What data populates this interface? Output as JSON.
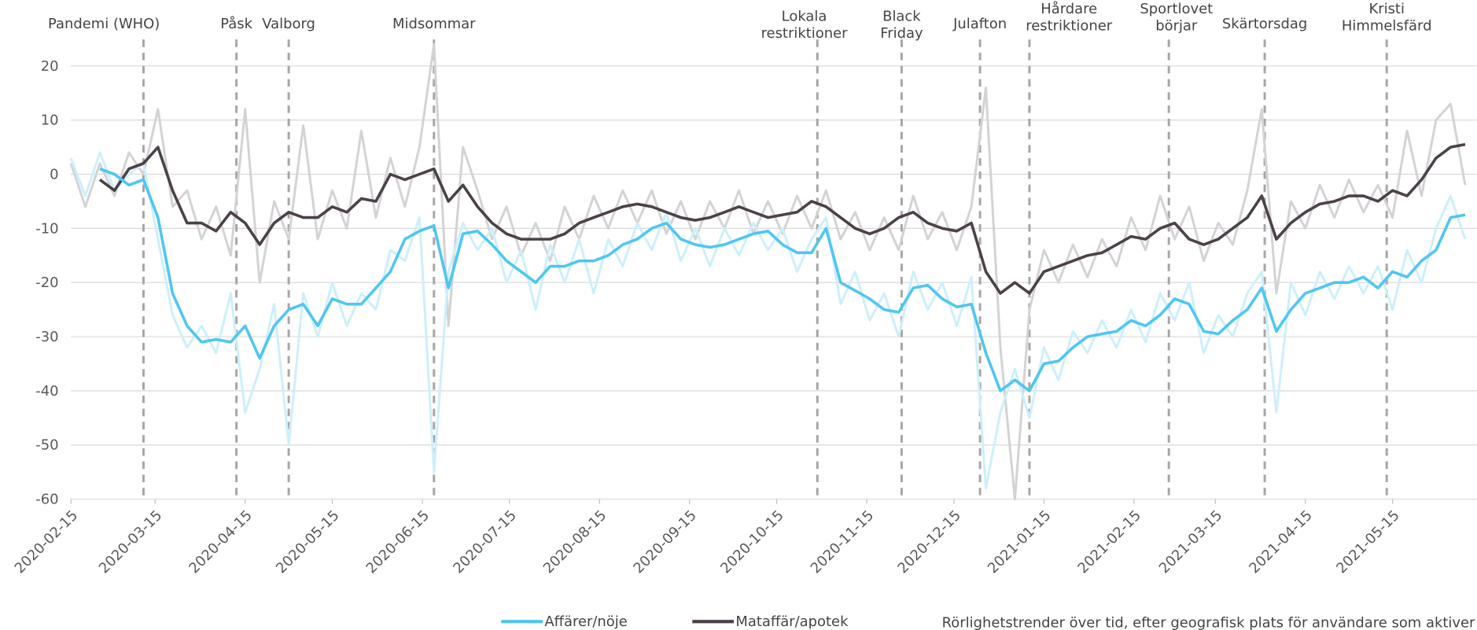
{
  "chart_data": {
    "type": "line",
    "x": [
      "2020-02-15",
      "2020-02-20",
      "2020-02-25",
      "2020-03-01",
      "2020-03-06",
      "2020-03-11",
      "2020-03-16",
      "2020-03-21",
      "2020-03-26",
      "2020-03-31",
      "2020-04-05",
      "2020-04-10",
      "2020-04-15",
      "2020-04-20",
      "2020-04-25",
      "2020-04-30",
      "2020-05-05",
      "2020-05-10",
      "2020-05-15",
      "2020-05-20",
      "2020-05-25",
      "2020-05-30",
      "2020-06-04",
      "2020-06-09",
      "2020-06-14",
      "2020-06-19",
      "2020-06-24",
      "2020-06-29",
      "2020-07-04",
      "2020-07-09",
      "2020-07-14",
      "2020-07-19",
      "2020-07-24",
      "2020-07-29",
      "2020-08-03",
      "2020-08-08",
      "2020-08-13",
      "2020-08-18",
      "2020-08-23",
      "2020-08-28",
      "2020-09-02",
      "2020-09-07",
      "2020-09-12",
      "2020-09-17",
      "2020-09-22",
      "2020-09-27",
      "2020-10-02",
      "2020-10-07",
      "2020-10-12",
      "2020-10-17",
      "2020-10-22",
      "2020-10-27",
      "2020-11-01",
      "2020-11-06",
      "2020-11-11",
      "2020-11-16",
      "2020-11-21",
      "2020-11-26",
      "2020-12-01",
      "2020-12-06",
      "2020-12-11",
      "2020-12-16",
      "2020-12-21",
      "2020-12-26",
      "2020-12-31",
      "2021-01-05",
      "2021-01-10",
      "2021-01-15",
      "2021-01-20",
      "2021-01-25",
      "2021-01-30",
      "2021-02-04",
      "2021-02-09",
      "2021-02-14",
      "2021-02-19",
      "2021-02-24",
      "2021-03-01",
      "2021-03-06",
      "2021-03-11",
      "2021-03-16",
      "2021-03-21",
      "2021-03-26",
      "2021-03-31",
      "2021-04-05",
      "2021-04-10",
      "2021-04-15",
      "2021-04-20",
      "2021-04-25",
      "2021-04-30",
      "2021-05-05",
      "2021-05-10",
      "2021-05-15",
      "2021-05-20",
      "2021-05-25",
      "2021-05-30",
      "2021-06-04",
      "2021-06-09"
    ],
    "raw_series": [
      {
        "color": "#d3d3d5",
        "values": [
          2,
          -6,
          2,
          -4,
          4,
          0,
          12,
          -6,
          -3,
          -12,
          -6,
          -15,
          12,
          -20,
          -5,
          -12,
          9,
          -12,
          -3,
          -10,
          8,
          -8,
          3,
          -6,
          5,
          24,
          -28,
          5,
          -3,
          -12,
          -6,
          -15,
          -9,
          -16,
          -6,
          -12,
          -4,
          -10,
          -3,
          -9,
          -3,
          -11,
          -5,
          -12,
          -5,
          -10,
          -3,
          -11,
          -5,
          -11,
          -4,
          -10,
          -3,
          -12,
          -7,
          -14,
          -8,
          -14,
          -4,
          -12,
          -7,
          -14,
          -6,
          16,
          -32,
          -60,
          -25,
          -14,
          -20,
          -13,
          -19,
          -12,
          -17,
          -8,
          -14,
          -4,
          -12,
          -6,
          -16,
          -9,
          -13,
          -3,
          12,
          -22,
          -5,
          -10,
          -2,
          -8,
          -1,
          -7,
          -2,
          -8,
          8,
          -4,
          10,
          13,
          -2
        ]
      },
      {
        "color": "#cdeffb",
        "values": [
          3,
          -4,
          4,
          -3,
          0,
          2,
          -12,
          -26,
          -32,
          -28,
          -33,
          -22,
          -44,
          -36,
          -24,
          -50,
          -22,
          -30,
          -20,
          -28,
          -22,
          -25,
          -14,
          -16,
          -8,
          -55,
          -18,
          -9,
          -14,
          -10,
          -20,
          -14,
          -25,
          -13,
          -20,
          -12,
          -22,
          -12,
          -17,
          -9,
          -14,
          -7,
          -16,
          -10,
          -17,
          -10,
          -15,
          -9,
          -14,
          -10,
          -18,
          -12,
          -8,
          -24,
          -18,
          -27,
          -22,
          -30,
          -18,
          -25,
          -20,
          -28,
          -19,
          -58,
          -44,
          -36,
          -45,
          -32,
          -38,
          -29,
          -33,
          -27,
          -32,
          -25,
          -31,
          -22,
          -27,
          -20,
          -33,
          -26,
          -30,
          -22,
          -18,
          -44,
          -20,
          -26,
          -18,
          -23,
          -17,
          -22,
          -17,
          -25,
          -14,
          -20,
          -10,
          -4,
          -12
        ]
      }
    ],
    "series": [
      {
        "name": "Affärer/nöje",
        "color": "#4fc6f2",
        "values": [
          null,
          null,
          1,
          0,
          -2,
          -1,
          -8,
          -22,
          -28,
          -31,
          -30.5,
          -31,
          -28,
          -34,
          -28,
          -25,
          -24,
          -28,
          -23,
          -24,
          -24,
          -21,
          -18,
          -12,
          -10.5,
          -9.5,
          -21,
          -11,
          -10.5,
          -13,
          -16,
          -18,
          -20,
          -17,
          -17,
          -16,
          -16,
          -15,
          -13,
          -12,
          -10,
          -9,
          -12,
          -13,
          -13.5,
          -13,
          -12,
          -11,
          -10.5,
          -13,
          -14.5,
          -14.5,
          -10,
          -20,
          -21.5,
          -23,
          -25,
          -25.5,
          -21,
          -20.5,
          -23,
          -24.5,
          -24,
          -33,
          -40,
          -38,
          -40,
          -35,
          -34.5,
          -32,
          -30,
          -29.5,
          -29,
          -27,
          -28,
          -26,
          -23,
          -24,
          -29,
          -29.5,
          -27,
          -25,
          -21,
          -29,
          -25,
          -22,
          -21,
          -20,
          -20,
          -19,
          -21,
          -18,
          -19,
          -16,
          -14,
          -8,
          -7.5
        ]
      },
      {
        "name": "Mataffär/apotek",
        "color": "#4b4149",
        "values": [
          null,
          null,
          -1,
          -3,
          1,
          2,
          5,
          -3,
          -9,
          -9,
          -10.5,
          -7,
          -9,
          -13,
          -9,
          -7,
          -8,
          -8,
          -6,
          -7,
          -4.5,
          -5,
          0,
          -1,
          0,
          1,
          -5,
          -2,
          -6,
          -9,
          -11,
          -12,
          -12,
          -12,
          -11,
          -9,
          -8,
          -7,
          -6,
          -5.5,
          -6,
          -7,
          -8,
          -8.5,
          -8,
          -7,
          -6,
          -7,
          -8,
          -7.5,
          -7,
          -5,
          -6,
          -8,
          -10,
          -11,
          -10,
          -8,
          -7,
          -9,
          -10,
          -10.5,
          -9,
          -18,
          -22,
          -20,
          -22,
          -18,
          -17,
          -16,
          -15,
          -14.5,
          -13,
          -11.5,
          -12,
          -10,
          -9,
          -12,
          -13,
          -12,
          -10,
          -8,
          -4,
          -12,
          -9,
          -7,
          -5.5,
          -5,
          -4,
          -4,
          -5,
          -3,
          -4,
          -1,
          3,
          5,
          5.5
        ]
      }
    ],
    "xlim": [
      "2020-02-15",
      "2021-06-13"
    ],
    "xticks": [
      "2020-02-15",
      "2020-03-15",
      "2020-04-15",
      "2020-05-15",
      "2020-06-15",
      "2020-07-15",
      "2020-08-15",
      "2020-09-15",
      "2020-10-15",
      "2020-11-15",
      "2020-12-15",
      "2021-01-15",
      "2021-02-15",
      "2021-03-15",
      "2021-04-15",
      "2021-05-15"
    ],
    "ylim": [
      -60,
      20
    ],
    "yticks": [
      -60,
      -50,
      -40,
      -30,
      -20,
      -10,
      0,
      10,
      20
    ],
    "grid": true,
    "annotations": [
      {
        "date": "2020-03-11",
        "lines": [
          "Pandemi (WHO)"
        ]
      },
      {
        "date": "2020-04-12",
        "lines": [
          "Påsk"
        ]
      },
      {
        "date": "2020-04-30",
        "lines": [
          "Valborg"
        ]
      },
      {
        "date": "2020-06-19",
        "lines": [
          "Midsommar"
        ]
      },
      {
        "date": "2020-10-29",
        "lines": [
          "Lokala",
          "restriktioner"
        ]
      },
      {
        "date": "2020-11-27",
        "lines": [
          "Black",
          "Friday"
        ]
      },
      {
        "date": "2020-12-24",
        "lines": [
          "Julafton"
        ]
      },
      {
        "date": "2021-01-10",
        "lines": [
          "Hårdare",
          "restriktioner"
        ]
      },
      {
        "date": "2021-02-27",
        "lines": [
          "Sportlovet",
          "börjar"
        ]
      },
      {
        "date": "2021-04-01",
        "lines": [
          "Skärtorsdag"
        ]
      },
      {
        "date": "2021-05-13",
        "lines": [
          "Kristi",
          "Himmelsfärd"
        ]
      }
    ],
    "footnote": "Rörlighetstrender över tid, efter geografisk plats för användare som aktiver"
  }
}
